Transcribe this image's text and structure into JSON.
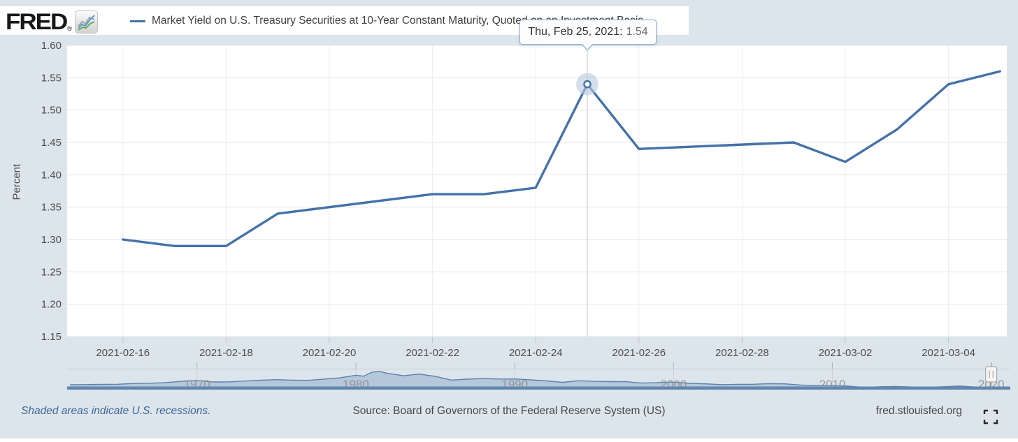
{
  "header": {
    "logo": "FRED",
    "registered": "®",
    "legend_label": "Market Yield on U.S. Treasury Securities at 10-Year Constant Maturity, Quoted on an Investment Basis"
  },
  "tooltip": {
    "date": "Thu, Feb 25, 2021:",
    "value": "1.54"
  },
  "chart_data": {
    "type": "line",
    "title": "Market Yield on U.S. Treasury Securities at 10-Year Constant Maturity, Quoted on an Investment Basis",
    "xlabel": "",
    "ylabel": "Percent",
    "ylim": [
      1.15,
      1.6
    ],
    "yticks": [
      "1.15",
      "1.20",
      "1.25",
      "1.30",
      "1.35",
      "1.40",
      "1.45",
      "1.50",
      "1.55",
      "1.60"
    ],
    "xticks": [
      "2021-02-16",
      "2021-02-18",
      "2021-02-20",
      "2021-02-22",
      "2021-02-24",
      "2021-02-26",
      "2021-02-28",
      "2021-03-02",
      "2021-03-04"
    ],
    "grid": true,
    "legend_position": "top",
    "series": [
      {
        "name": "Market Yield on U.S. Treasury Securities at 10-Year Constant Maturity, Quoted on an Investment Basis",
        "color": "#4572a7",
        "dates": [
          "2021-02-16",
          "2021-02-17",
          "2021-02-18",
          "2021-02-19",
          "2021-02-22",
          "2021-02-23",
          "2021-02-24",
          "2021-02-25",
          "2021-02-26",
          "2021-03-01",
          "2021-03-02",
          "2021-03-03",
          "2021-03-04",
          "2021-03-05"
        ],
        "values": [
          1.3,
          1.29,
          1.29,
          1.34,
          1.37,
          1.37,
          1.38,
          1.54,
          1.44,
          1.45,
          1.42,
          1.47,
          1.54,
          1.56
        ]
      }
    ],
    "highlight": {
      "date": "2021-02-25",
      "value": 1.54
    }
  },
  "navigator": {
    "type": "area",
    "decade_labels": [
      "1970",
      "1980",
      "1990",
      "2000",
      "2010",
      "2020"
    ],
    "handle_year": 2020,
    "years": [
      1962,
      1963,
      1964,
      1965,
      1966,
      1967,
      1968,
      1969,
      1970,
      1971,
      1972,
      1973,
      1974,
      1975,
      1976,
      1977,
      1978,
      1979,
      1980,
      1980.5,
      1981,
      1981.5,
      1982,
      1983,
      1984,
      1985,
      1986,
      1987,
      1988,
      1989,
      1990,
      1991,
      1992,
      1993,
      1994,
      1995,
      1996,
      1997,
      1998,
      1999,
      2000,
      2001,
      2002,
      2003,
      2004,
      2005,
      2006,
      2007,
      2008,
      2009,
      2010,
      2011,
      2012,
      2013,
      2014,
      2015,
      2016,
      2017,
      2018,
      2019,
      2020,
      2021.1
    ],
    "values": [
      3.95,
      4.0,
      4.19,
      4.28,
      4.93,
      5.07,
      5.64,
      6.67,
      7.35,
      6.16,
      6.21,
      6.85,
      7.56,
      7.99,
      7.61,
      7.42,
      8.41,
      9.43,
      11.43,
      10.8,
      13.92,
      14.6,
      13.0,
      11.1,
      12.46,
      10.62,
      7.67,
      8.39,
      8.85,
      8.49,
      8.55,
      7.86,
      7.01,
      5.87,
      7.09,
      6.57,
      6.44,
      6.35,
      5.26,
      5.65,
      6.03,
      5.02,
      4.61,
      4.01,
      4.27,
      4.29,
      4.8,
      4.63,
      3.66,
      3.26,
      3.22,
      2.78,
      1.8,
      2.35,
      2.54,
      2.14,
      1.84,
      2.33,
      2.91,
      2.14,
      0.89,
      1.45
    ]
  },
  "footer": {
    "recession_note": "Shaded areas indicate U.S. recessions.",
    "source": "Source: Board of Governors of the Federal Reserve System (US)",
    "site": "fred.stlouisfed.org"
  },
  "colors": {
    "page_bg": "#dde5ec",
    "plot_bg": "#ffffff",
    "series_line": "#4572a7",
    "grid_line": "#e6e6e6",
    "v_grid_line": "#ededed",
    "crosshair": "#c8c8c8",
    "halo": "#b9cade",
    "axis_label": "#4d4d4d",
    "tooltip_border": "#8fb2d4",
    "nav_area_fill": "#b5c7db",
    "nav_area_line": "#5d82ac",
    "nav_base_strip": "#6286ae",
    "nav_label": "#8f8f8f",
    "recession_note_color": "#41669b"
  }
}
